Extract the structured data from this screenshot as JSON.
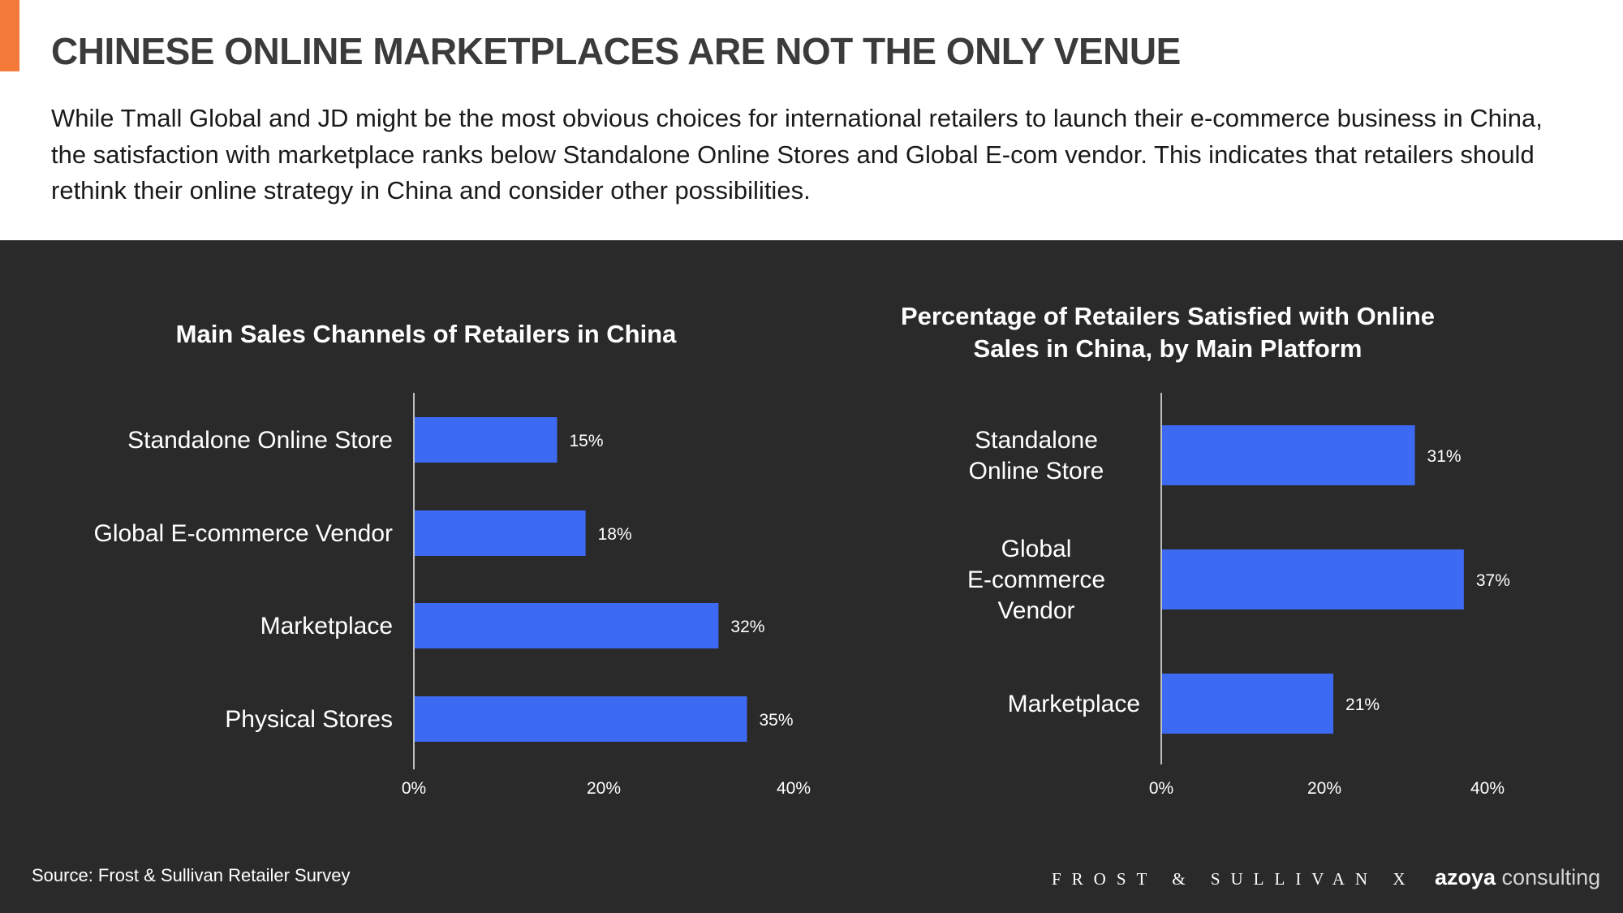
{
  "header": {
    "title": "CHINESE ONLINE MARKETPLACES ARE NOT THE ONLY VENUE",
    "paragraph": "While Tmall Global and JD might be the most obvious choices for international retailers to launch their e-commerce business in China, the satisfaction with marketplace ranks below Standalone Online Stores and Global E-com vendor. This indicates that retailers should rethink their online strategy in China and consider other possibilities.",
    "accent_color": "#f47a3a"
  },
  "footer": {
    "source": "Source: Frost & Sullivan Retailer Survey",
    "logo_frost": "FROST & SULLIVAN",
    "logo_separator": "X",
    "logo_azoya_bold": "azoya",
    "logo_azoya_light": " consulting"
  },
  "colors": {
    "bar": "#3d6af2",
    "panel": "#2a2a2a",
    "text": "#ffffff"
  },
  "chart_data": [
    {
      "type": "bar",
      "orientation": "horizontal",
      "title": "Main Sales Channels of Retailers in China",
      "categories": [
        "Standalone Online Store",
        "Global E-commerce Vendor",
        "Marketplace",
        "Physical Stores"
      ],
      "values": [
        15,
        18,
        32,
        35
      ],
      "value_labels": [
        "15%",
        "18%",
        "32%",
        "35%"
      ],
      "xlim": [
        0,
        40
      ],
      "xticks": [
        "0%",
        "20%",
        "40%"
      ],
      "grid": false
    },
    {
      "type": "bar",
      "orientation": "horizontal",
      "title": "Percentage of Retailers Satisfied with Online Sales in China, by Main Platform",
      "categories": [
        "Standalone Online Store",
        "Global E-commerce Vendor",
        "Marketplace"
      ],
      "values": [
        31,
        37,
        21
      ],
      "value_labels": [
        "31%",
        "37%",
        "21%"
      ],
      "xlim": [
        0,
        40
      ],
      "xticks": [
        "0%",
        "20%",
        "40%"
      ],
      "grid": false
    }
  ]
}
